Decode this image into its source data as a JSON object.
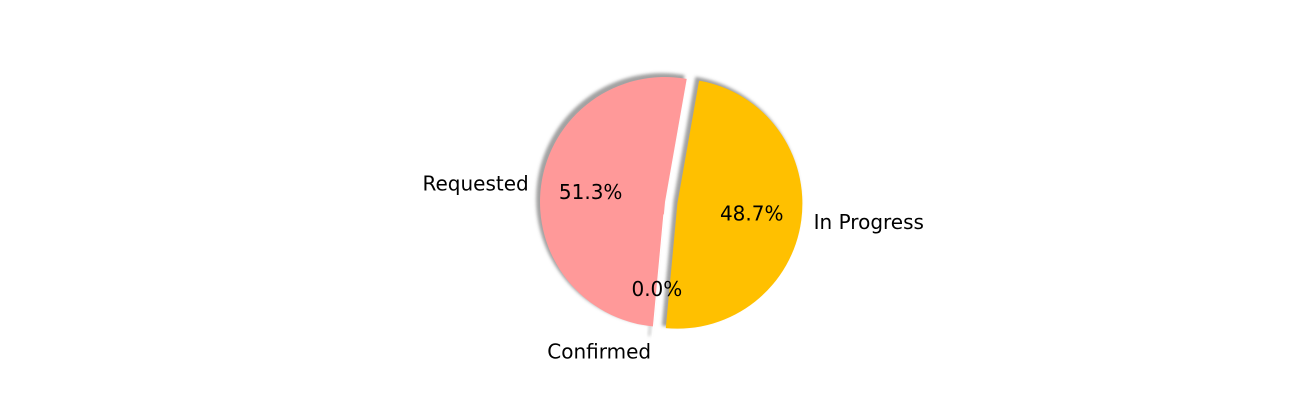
{
  "chart_data": {
    "type": "pie",
    "slices": [
      {
        "label": "Requested",
        "value": 51.3,
        "pct_label": "51.3%",
        "color": "#ff9999",
        "exploded": false
      },
      {
        "label": "Confirmed",
        "value": 0.0,
        "pct_label": "0.0%",
        "color": "#ffc000",
        "exploded": true
      },
      {
        "label": "In Progress",
        "value": 48.7,
        "pct_label": "48.7%",
        "color": "#ffc000",
        "exploded": true
      }
    ],
    "shadow": true,
    "legend": "none"
  }
}
